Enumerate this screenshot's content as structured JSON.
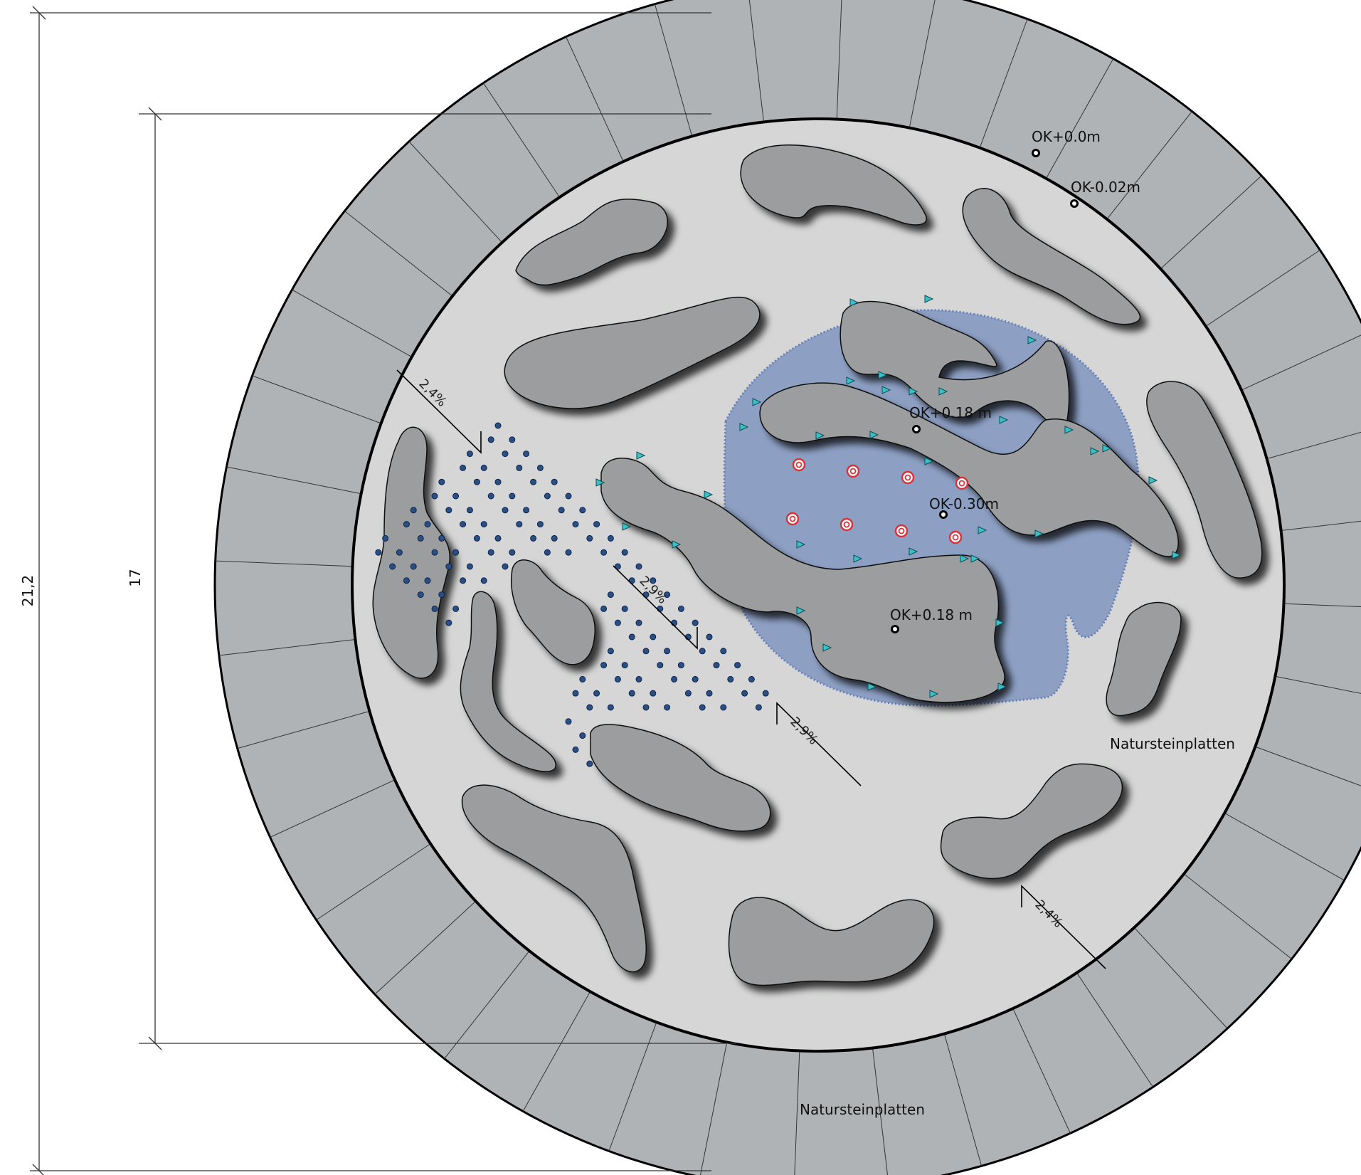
{
  "dimensions": {
    "outer": "21,2",
    "inner": "17"
  },
  "levels": [
    {
      "id": "top",
      "text": "OK+0.0m"
    },
    {
      "id": "edge",
      "text": "OK-0.02m"
    },
    {
      "id": "island",
      "text": "OK+0.18 m"
    },
    {
      "id": "pool",
      "text": "OK-0.30m"
    },
    {
      "id": "island2",
      "text": "OK+0.18 m"
    }
  ],
  "slopes": [
    "2,4%",
    "2,9%",
    "2,9%",
    "2,4%"
  ],
  "materials": {
    "ring": "Natursteinplatten",
    "plaza": "Natursteinplatten"
  },
  "colors": {
    "ring": "#b0b3b6",
    "plaza": "#d5d6d5",
    "rock": "#9c9d9e",
    "water": "#8a9ec4",
    "water_edge": "#5f79b5",
    "fountain_ring": "#d9333a",
    "jet_dot": "#2a4f86",
    "marker": "#3bc0c8"
  },
  "legend_icons": [
    "height-marker-icon",
    "fountain-nozzle-icon",
    "floor-jet-icon",
    "edge-light-icon"
  ]
}
